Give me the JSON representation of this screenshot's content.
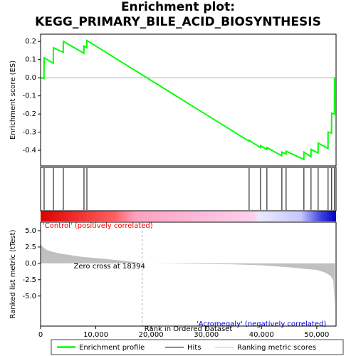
{
  "chart_data": [
    {
      "type": "line",
      "title": "Enrichment plot: KEGG_PRIMARY_BILE_ACID_BIOSYNTHESIS",
      "ylabel": "Enrichment score (ES)",
      "xlim": [
        0,
        53500
      ],
      "ylim": [
        -0.486,
        0.24
      ],
      "yticks": [
        0.2,
        0.1,
        {
          "value": 0,
          "label": "0.0"
        },
        -0.1,
        -0.2,
        -0.3,
        -0.4
      ],
      "series": [
        {
          "name": "Enrichment profile",
          "color": "#00ff00",
          "x": [
            0,
            600,
            640,
            2300,
            2320,
            4100,
            4120,
            7840,
            7860,
            8360,
            8380,
            37740,
            37760,
            39800,
            39820,
            40960,
            40980,
            43670,
            43690,
            44440,
            44460,
            47660,
            47680,
            48950,
            48970,
            50240,
            50260,
            52040,
            52060,
            52680,
            52700,
            53200,
            53220
          ],
          "values": [
            0,
            -0.005,
            0.11,
            0.08,
            0.165,
            0.14,
            0.2,
            0.135,
            0.175,
            0.165,
            0.205,
            -0.35,
            -0.345,
            -0.385,
            -0.375,
            -0.395,
            -0.385,
            -0.43,
            -0.41,
            -0.42,
            -0.405,
            -0.45,
            -0.41,
            -0.435,
            -0.395,
            -0.415,
            -0.36,
            -0.39,
            -0.3,
            -0.305,
            -0.195,
            -0.2,
            0.0
          ]
        }
      ]
    },
    {
      "type": "hits",
      "xlim": [
        0,
        53500
      ],
      "series": [
        {
          "name": "Hits",
          "color": "#000000",
          "x": [
            640,
            2320,
            4120,
            7860,
            8380,
            37760,
            39820,
            40980,
            43690,
            44460,
            47680,
            48970,
            50260,
            52060,
            52700,
            53220
          ]
        }
      ]
    },
    {
      "type": "area",
      "xlabel": "Rank in Ordered Dataset",
      "ylabel": "Ranked list metric (tTest)",
      "xlim": [
        0,
        53500
      ],
      "ylim": [
        -9.6,
        6.3
      ],
      "xticks": [
        0,
        {
          "value": 10000,
          "label": "10,000"
        },
        {
          "value": 20000,
          "label": "20,000"
        },
        {
          "value": 30000,
          "label": "30,000"
        },
        {
          "value": 40000,
          "label": "40,000"
        },
        {
          "value": 50000,
          "label": "50,000"
        }
      ],
      "yticks": [
        {
          "value": 5,
          "label": "5.0"
        },
        {
          "value": 2.5,
          "label": "2.5"
        },
        {
          "value": 0,
          "label": "0.0"
        },
        {
          "value": -2.5,
          "label": "-2.5"
        },
        {
          "value": -5,
          "label": "-5.0"
        }
      ],
      "series": [
        {
          "name": "Ranking metric scores",
          "color": "#c0c0c0",
          "x": [
            0,
            300,
            1000,
            2000,
            3500,
            5000,
            7500,
            10000,
            12500,
            15000,
            17000,
            18394,
            25000,
            35000,
            40000,
            45000,
            48000,
            50000,
            51500,
            52500,
            53000,
            53300
          ],
          "values": [
            3.0,
            2.6,
            2.1,
            1.8,
            1.5,
            1.3,
            1.0,
            0.8,
            0.6,
            0.4,
            0.2,
            0,
            -0.05,
            -0.15,
            -0.3,
            -0.6,
            -0.85,
            -1.0,
            -1.4,
            -1.9,
            -2.6,
            -6.5
          ]
        }
      ],
      "zero_cross": {
        "value": 18394,
        "label": "Zero cross at 18394"
      },
      "annotations": [
        {
          "text": "'Control' (positively correlated)",
          "color": "#ff0000"
        },
        {
          "text": "'Acromegaly' (negatively correlated)",
          "color": "#0000dd"
        }
      ]
    }
  ]
}
